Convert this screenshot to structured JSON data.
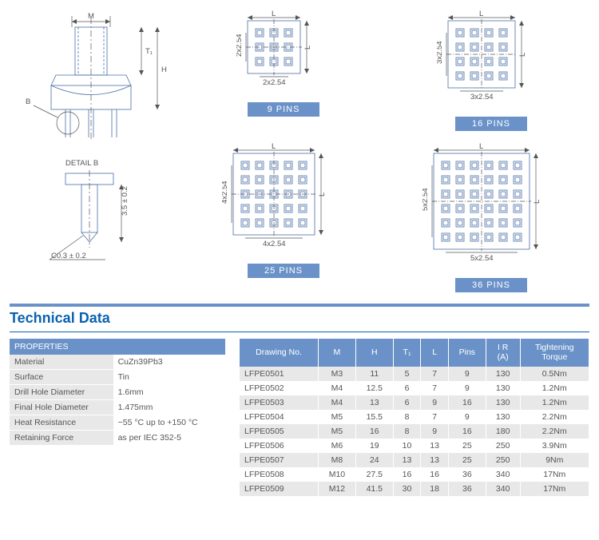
{
  "mainDrawing": {
    "dimM": "M",
    "dimT1": "T₁",
    "dimH": "H",
    "dimB": "B"
  },
  "detailB": {
    "title": "DETAIL B",
    "dim1": "3.5 ± 0.2",
    "chamfer": "C0.3 ± 0.2"
  },
  "pinBlocks": [
    {
      "label": "9  PINS",
      "topDim": "L",
      "rightDim": "L",
      "bottomDim": "2x2.54",
      "leftDim": "2x2.54",
      "grid": 3
    },
    {
      "label": "16  PINS",
      "topDim": "L",
      "rightDim": "L",
      "bottomDim": "3x2.54",
      "leftDim": "3x2.54",
      "grid": 4
    },
    {
      "label": "25  PINS",
      "topDim": "L",
      "rightDim": "L",
      "bottomDim": "4x2.54",
      "leftDim": "4x2.54",
      "grid": 5
    },
    {
      "label": "36  PINS",
      "topDim": "L",
      "rightDim": "L",
      "bottomDim": "5x2.54",
      "leftDim": "5x2.54",
      "grid": 6
    }
  ],
  "techTitle": "Technical Data",
  "properties": {
    "header": "PROPERTIES",
    "rows": [
      [
        "Material",
        "CuZn39Pb3"
      ],
      [
        "Surface",
        "Tin"
      ],
      [
        "Drill Hole Diameter",
        "1.6mm"
      ],
      [
        "Final Hole Diameter",
        "1.475mm"
      ],
      [
        "Heat Resistance",
        "−55 °C up to +150 °C"
      ],
      [
        "Retaining Force",
        "as per IEC 352-5"
      ]
    ]
  },
  "dataTable": {
    "headers": [
      "Drawing No.",
      "M",
      "H",
      "T₁",
      "L",
      "Pins",
      "I R\n(A)",
      "Tightening\nTorque"
    ],
    "rows": [
      [
        "LFPE0501",
        "M3",
        "11",
        "5",
        "7",
        "9",
        "130",
        "0.5Nm"
      ],
      [
        "LFPE0502",
        "M4",
        "12.5",
        "6",
        "7",
        "9",
        "130",
        "1.2Nm"
      ],
      [
        "LFPE0503",
        "M4",
        "13",
        "6",
        "9",
        "16",
        "130",
        "1.2Nm"
      ],
      [
        "LFPE0504",
        "M5",
        "15.5",
        "8",
        "7",
        "9",
        "130",
        "2.2Nm"
      ],
      [
        "LFPE0505",
        "M5",
        "16",
        "8",
        "9",
        "16",
        "180",
        "2.2Nm"
      ],
      [
        "LFPE0506",
        "M6",
        "19",
        "10",
        "13",
        "25",
        "250",
        "3.9Nm"
      ],
      [
        "LFPE0507",
        "M8",
        "24",
        "13",
        "13",
        "25",
        "250",
        "9Nm"
      ],
      [
        "LFPE0508",
        "M10",
        "27.5",
        "16",
        "16",
        "36",
        "340",
        "17Nm"
      ],
      [
        "LFPE0509",
        "M12",
        "41.5",
        "30",
        "18",
        "36",
        "340",
        "17Nm"
      ]
    ]
  },
  "style": {
    "accent": "#6a92c8",
    "titleColor": "#0a62b0",
    "bandColor": "#e8e8e8"
  }
}
